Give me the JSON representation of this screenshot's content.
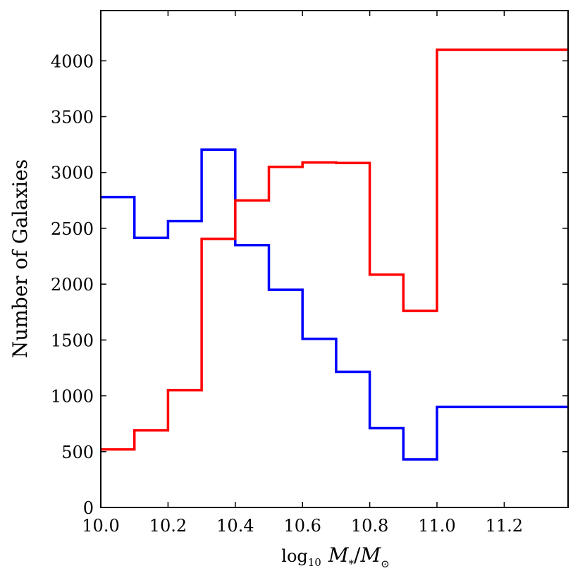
{
  "chart_data": {
    "type": "line",
    "step": "post",
    "title": "",
    "ylabel": "Number of Galaxies",
    "xlabel": {
      "prefix": "log",
      "sub": "10",
      "m1": "M",
      "m1_sub": "*",
      "slash": "/",
      "m2": "M",
      "m2_sub": "⊙"
    },
    "xlim": [
      10.0,
      11.39
    ],
    "ylim": [
      0,
      4450
    ],
    "xticks": [
      10.0,
      10.2,
      10.4,
      10.6,
      10.8,
      11.0,
      11.2
    ],
    "xtick_labels": [
      "10.0",
      "10.2",
      "10.4",
      "10.6",
      "10.8",
      "11.0",
      "11.2"
    ],
    "yticks": [
      0,
      500,
      1000,
      1500,
      2000,
      2500,
      3000,
      3500,
      4000
    ],
    "ytick_labels": [
      "0",
      "500",
      "1000",
      "1500",
      "2000",
      "2500",
      "3000",
      "3500",
      "4000"
    ],
    "grid": false,
    "legend": "none",
    "series": [
      {
        "color": "#0000ff",
        "x": [
          10.0,
          10.1,
          10.2,
          10.3,
          10.4,
          10.5,
          10.6,
          10.7,
          10.8,
          10.9,
          11.0
        ],
        "values": [
          2780,
          2415,
          2565,
          3205,
          2350,
          1950,
          1510,
          1215,
          710,
          430,
          900
        ],
        "x_end": 11.39
      },
      {
        "color": "#ff0000",
        "x": [
          10.0,
          10.1,
          10.2,
          10.3,
          10.4,
          10.5,
          10.6,
          10.7,
          10.8,
          10.9,
          11.0
        ],
        "values": [
          520,
          690,
          1050,
          2405,
          2750,
          3050,
          3090,
          3085,
          2085,
          1760,
          4100
        ],
        "x_end": 11.39
      }
    ]
  }
}
